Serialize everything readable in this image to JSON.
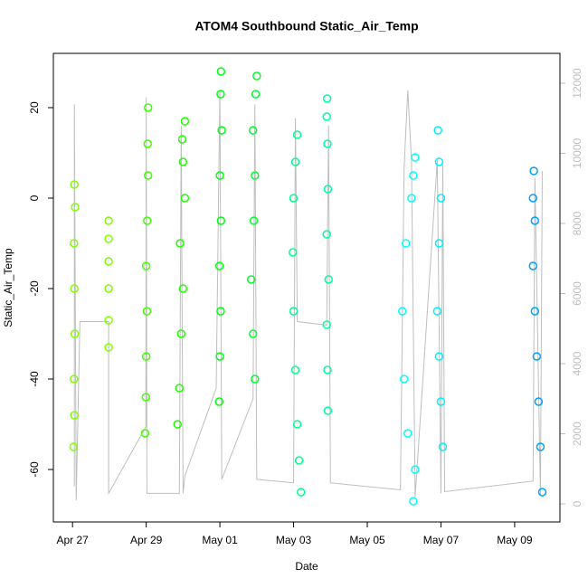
{
  "chart_data": {
    "type": "scatter",
    "title": "ATOM4 Southbound Static_Air_Temp",
    "xlabel": "Date",
    "ylabel": "Static_Air_Temp",
    "xlim": [
      -0.52,
      13.23
    ],
    "xticks": [
      {
        "value": 0,
        "label": "Apr 27"
      },
      {
        "value": 2,
        "label": "Apr 29"
      },
      {
        "value": 4,
        "label": "May 01"
      },
      {
        "value": 6,
        "label": "May 03"
      },
      {
        "value": 8,
        "label": "May 05"
      },
      {
        "value": 10,
        "label": "May 07"
      },
      {
        "value": 12,
        "label": "May 09"
      }
    ],
    "ylim": [
      -71.6,
      32
    ],
    "yticks": [
      -60,
      -40,
      -20,
      0,
      20
    ],
    "y2lim": [
      -516,
      12852
    ],
    "y2ticks": [
      0,
      2000,
      4000,
      6000,
      8000,
      10000,
      12000
    ],
    "series": [
      {
        "color": "#80ff00",
        "x": [
          0.03,
          0.05,
          0.04,
          0.06,
          0.05,
          0.04,
          0.07,
          0.05
        ],
        "values": [
          -55,
          -48,
          -40,
          -30,
          -20,
          -10,
          -2,
          3
        ]
      },
      {
        "color": "#80ff00",
        "x": [
          0.98,
          0.98,
          0.98,
          0.98,
          0.98,
          0.98
        ],
        "values": [
          -33,
          -27,
          -20,
          -14,
          -9,
          -5
        ]
      },
      {
        "color": "#40ff00",
        "x": [
          1.97,
          1.99,
          2.0,
          2.02,
          2.0,
          2.03,
          2.05,
          2.04,
          2.05
        ],
        "values": [
          -52,
          -44,
          -35,
          -25,
          -15,
          -5,
          5,
          12,
          20
        ]
      },
      {
        "color": "#20ff00",
        "x": [
          2.85,
          2.9,
          2.95,
          3.0,
          2.92,
          3.05,
          3.0,
          2.98,
          3.05
        ],
        "values": [
          -50,
          -42,
          -30,
          -20,
          -10,
          0,
          8,
          13,
          17
        ]
      },
      {
        "color": "#00ff10",
        "x": [
          3.98,
          4.0,
          4.02,
          3.99,
          4.03,
          4.0,
          4.05,
          4.02,
          4.03
        ],
        "values": [
          -45,
          -35,
          -25,
          -15,
          -5,
          5,
          15,
          23,
          28
        ]
      },
      {
        "color": "#00ff30",
        "x": [
          4.95,
          4.9,
          4.85,
          4.92,
          4.95,
          4.9,
          4.97,
          5.0
        ],
        "values": [
          -40,
          -30,
          -18,
          -5,
          5,
          15,
          23,
          27
        ]
      },
      {
        "color": "#00ff90",
        "x": [
          6.2,
          6.15,
          6.1,
          6.05,
          6.0,
          5.98,
          6.0,
          6.05,
          6.1
        ],
        "values": [
          -65,
          -58,
          -50,
          -38,
          -25,
          -12,
          0,
          8,
          14
        ]
      },
      {
        "color": "#00ffa0",
        "x": [
          6.93,
          6.92,
          6.9,
          6.95,
          6.9,
          6.93,
          6.92,
          6.9,
          6.91
        ],
        "values": [
          -47,
          -38,
          -28,
          -18,
          -8,
          2,
          12,
          18,
          22
        ]
      },
      {
        "color": "#00ffff",
        "x": [
          9.25,
          9.3,
          9.1,
          9.0,
          8.95,
          9.05,
          9.2,
          9.25,
          9.3
        ],
        "values": [
          -67,
          -60,
          -52,
          -40,
          -25,
          -10,
          0,
          5,
          9
        ]
      },
      {
        "color": "#00f0ff",
        "x": [
          10.05,
          10.0,
          9.95,
          9.9,
          9.95,
          10.0,
          9.95,
          9.92
        ],
        "values": [
          -55,
          -45,
          -35,
          -25,
          -10,
          0,
          8,
          15
        ]
      },
      {
        "color": "#00a0ff",
        "x": [
          12.75,
          12.7,
          12.65,
          12.6,
          12.55,
          12.5,
          12.55,
          12.5,
          12.52
        ],
        "values": [
          -65,
          -55,
          -45,
          -35,
          -25,
          -15,
          -5,
          0,
          6
        ]
      },
      {
        "color": "#bebebe",
        "axis": "y2",
        "x": [
          0.05,
          0.05,
          0.1,
          0.2,
          0.98,
          0.98,
          1.99,
          2.0,
          2.02,
          2.9,
          2.95,
          3.0,
          3.05,
          3.9,
          4.0,
          4.05,
          4.9,
          4.95,
          5.0,
          6.0,
          6.05,
          6.1,
          6.9,
          6.95,
          7.0,
          8.9,
          9.0,
          9.1,
          9.2,
          9.3,
          9.9,
          10.0,
          10.05,
          10.1,
          12.5,
          12.55,
          12.7,
          12.75
        ],
        "values": [
          500,
          11400,
          100,
          5200,
          5200,
          300,
          2200,
          11600,
          300,
          300,
          10800,
          300,
          800,
          3300,
          11800,
          700,
          3000,
          11400,
          700,
          600,
          11000,
          5200,
          5100,
          10800,
          600,
          400,
          9600,
          11800,
          9800,
          200,
          9800,
          300,
          9700,
          350,
          650,
          9300,
          250,
          9500
        ]
      }
    ]
  }
}
